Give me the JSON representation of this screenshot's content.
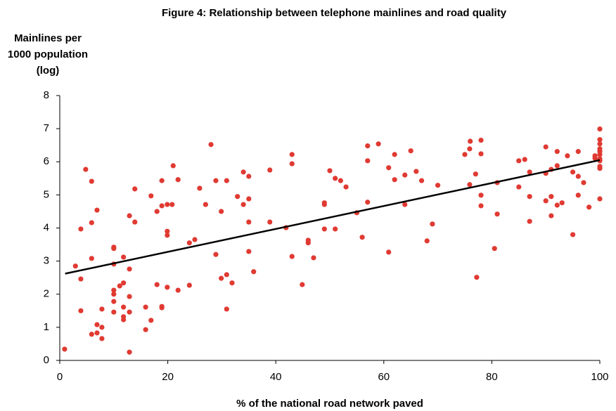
{
  "chart_data": {
    "type": "scatter",
    "title": "Figure 4: Relationship between telephone mainlines and road quality",
    "y_label": [
      "Mainlines per",
      "1000 population",
      "(log)"
    ],
    "x_label": "% of the national road network paved",
    "xlim": [
      0,
      100
    ],
    "xticks": [
      0,
      20,
      40,
      60,
      80,
      100
    ],
    "ylim": [
      0,
      8
    ],
    "yticks": [
      0,
      1,
      2,
      3,
      4,
      5,
      6,
      7,
      8
    ],
    "color": "#e03a32",
    "x": [
      0.9,
      2.9,
      3.9,
      3.9,
      3.9,
      4.8,
      5.9,
      5.9,
      5.9,
      5.9,
      6.9,
      6.9,
      6.9,
      7.8,
      7.8,
      7.8,
      10,
      10,
      10,
      10,
      10,
      10,
      10,
      11.1,
      11.8,
      11.8,
      11.8,
      11.8,
      11.8,
      12.9,
      12.9,
      12.9,
      12.9,
      12.9,
      13.9,
      13.9,
      15.9,
      15.9,
      16.9,
      16.9,
      18,
      18,
      18.9,
      18.9,
      18.9,
      18.9,
      19.9,
      19.9,
      19.9,
      19.9,
      20.8,
      21,
      21.9,
      21.9,
      24,
      24,
      25,
      25.9,
      27,
      28,
      28.9,
      28.9,
      29.9,
      29.9,
      30.9,
      30.9,
      30.9,
      31.9,
      32.9,
      34,
      34,
      35,
      35,
      35,
      35,
      35.9,
      38.9,
      38.9,
      41.9,
      43,
      43,
      43,
      44.9,
      46,
      46,
      47,
      49,
      49,
      49,
      50,
      51,
      51,
      52,
      53,
      55,
      56,
      57,
      57,
      57,
      59,
      60.9,
      60.9,
      62,
      62,
      63.9,
      63.9,
      65,
      66,
      67,
      68,
      69,
      70,
      75,
      75.9,
      75.9,
      76,
      77,
      77.2,
      78,
      78,
      78,
      78,
      81,
      81,
      80.5,
      85,
      85,
      86.1,
      87,
      87,
      87,
      90,
      90,
      90,
      91,
      91,
      91,
      92.1,
      92.1,
      92.1,
      93,
      94,
      95,
      95,
      96,
      96,
      96,
      97,
      98,
      99.1,
      99.1,
      100,
      100,
      100,
      100,
      100,
      100,
      100,
      100,
      100,
      100,
      100
    ],
    "values": [
      0.34,
      2.85,
      3.97,
      2.46,
      1.5,
      5.77,
      5.41,
      4.16,
      3.08,
      0.79,
      4.54,
      1.08,
      0.83,
      1.55,
      1.0,
      0.66,
      3.42,
      3.38,
      2.91,
      2.12,
      2.0,
      1.78,
      1.46,
      2.25,
      3.12,
      2.34,
      1.61,
      1.32,
      1.23,
      4.37,
      2.76,
      1.93,
      1.46,
      0.25,
      5.18,
      4.18,
      1.61,
      0.93,
      4.97,
      1.21,
      4.5,
      2.29,
      4.67,
      5.43,
      1.63,
      1.59,
      4.71,
      3.9,
      3.78,
      2.21,
      4.71,
      5.88,
      5.46,
      2.12,
      3.55,
      2.27,
      3.65,
      5.2,
      4.71,
      6.52,
      3.2,
      5.43,
      4.5,
      2.48,
      5.43,
      2.59,
      1.55,
      2.34,
      4.95,
      5.69,
      4.71,
      5.56,
      4.88,
      4.18,
      3.29,
      2.68,
      5.75,
      4.18,
      4.01,
      6.22,
      5.94,
      3.14,
      2.29,
      3.63,
      3.55,
      3.1,
      4.76,
      4.71,
      3.97,
      5.73,
      5.5,
      3.97,
      5.43,
      5.24,
      4.46,
      3.72,
      6.48,
      6.03,
      4.78,
      6.54,
      5.82,
      3.27,
      6.22,
      5.46,
      5.6,
      4.71,
      6.33,
      5.71,
      5.43,
      3.61,
      4.12,
      5.29,
      6.22,
      6.39,
      5.31,
      6.62,
      5.63,
      2.51,
      6.65,
      6.24,
      4.99,
      4.67,
      5.37,
      4.42,
      3.38,
      6.03,
      5.24,
      6.07,
      5.69,
      4.95,
      4.2,
      6.45,
      5.65,
      4.82,
      5.77,
      4.95,
      4.37,
      6.31,
      5.88,
      4.69,
      4.76,
      6.18,
      5.69,
      3.8,
      6.31,
      5.56,
      4.99,
      5.37,
      4.63,
      6.18,
      6.11,
      6.99,
      6.67,
      6.54,
      6.22,
      6.09,
      6.03,
      5.86,
      5.8,
      4.88,
      6.39,
      6.31
    ],
    "trendline": {
      "x": [
        1,
        100
      ],
      "values": [
        2.62,
        6.05
      ],
      "color": "#000000"
    }
  }
}
